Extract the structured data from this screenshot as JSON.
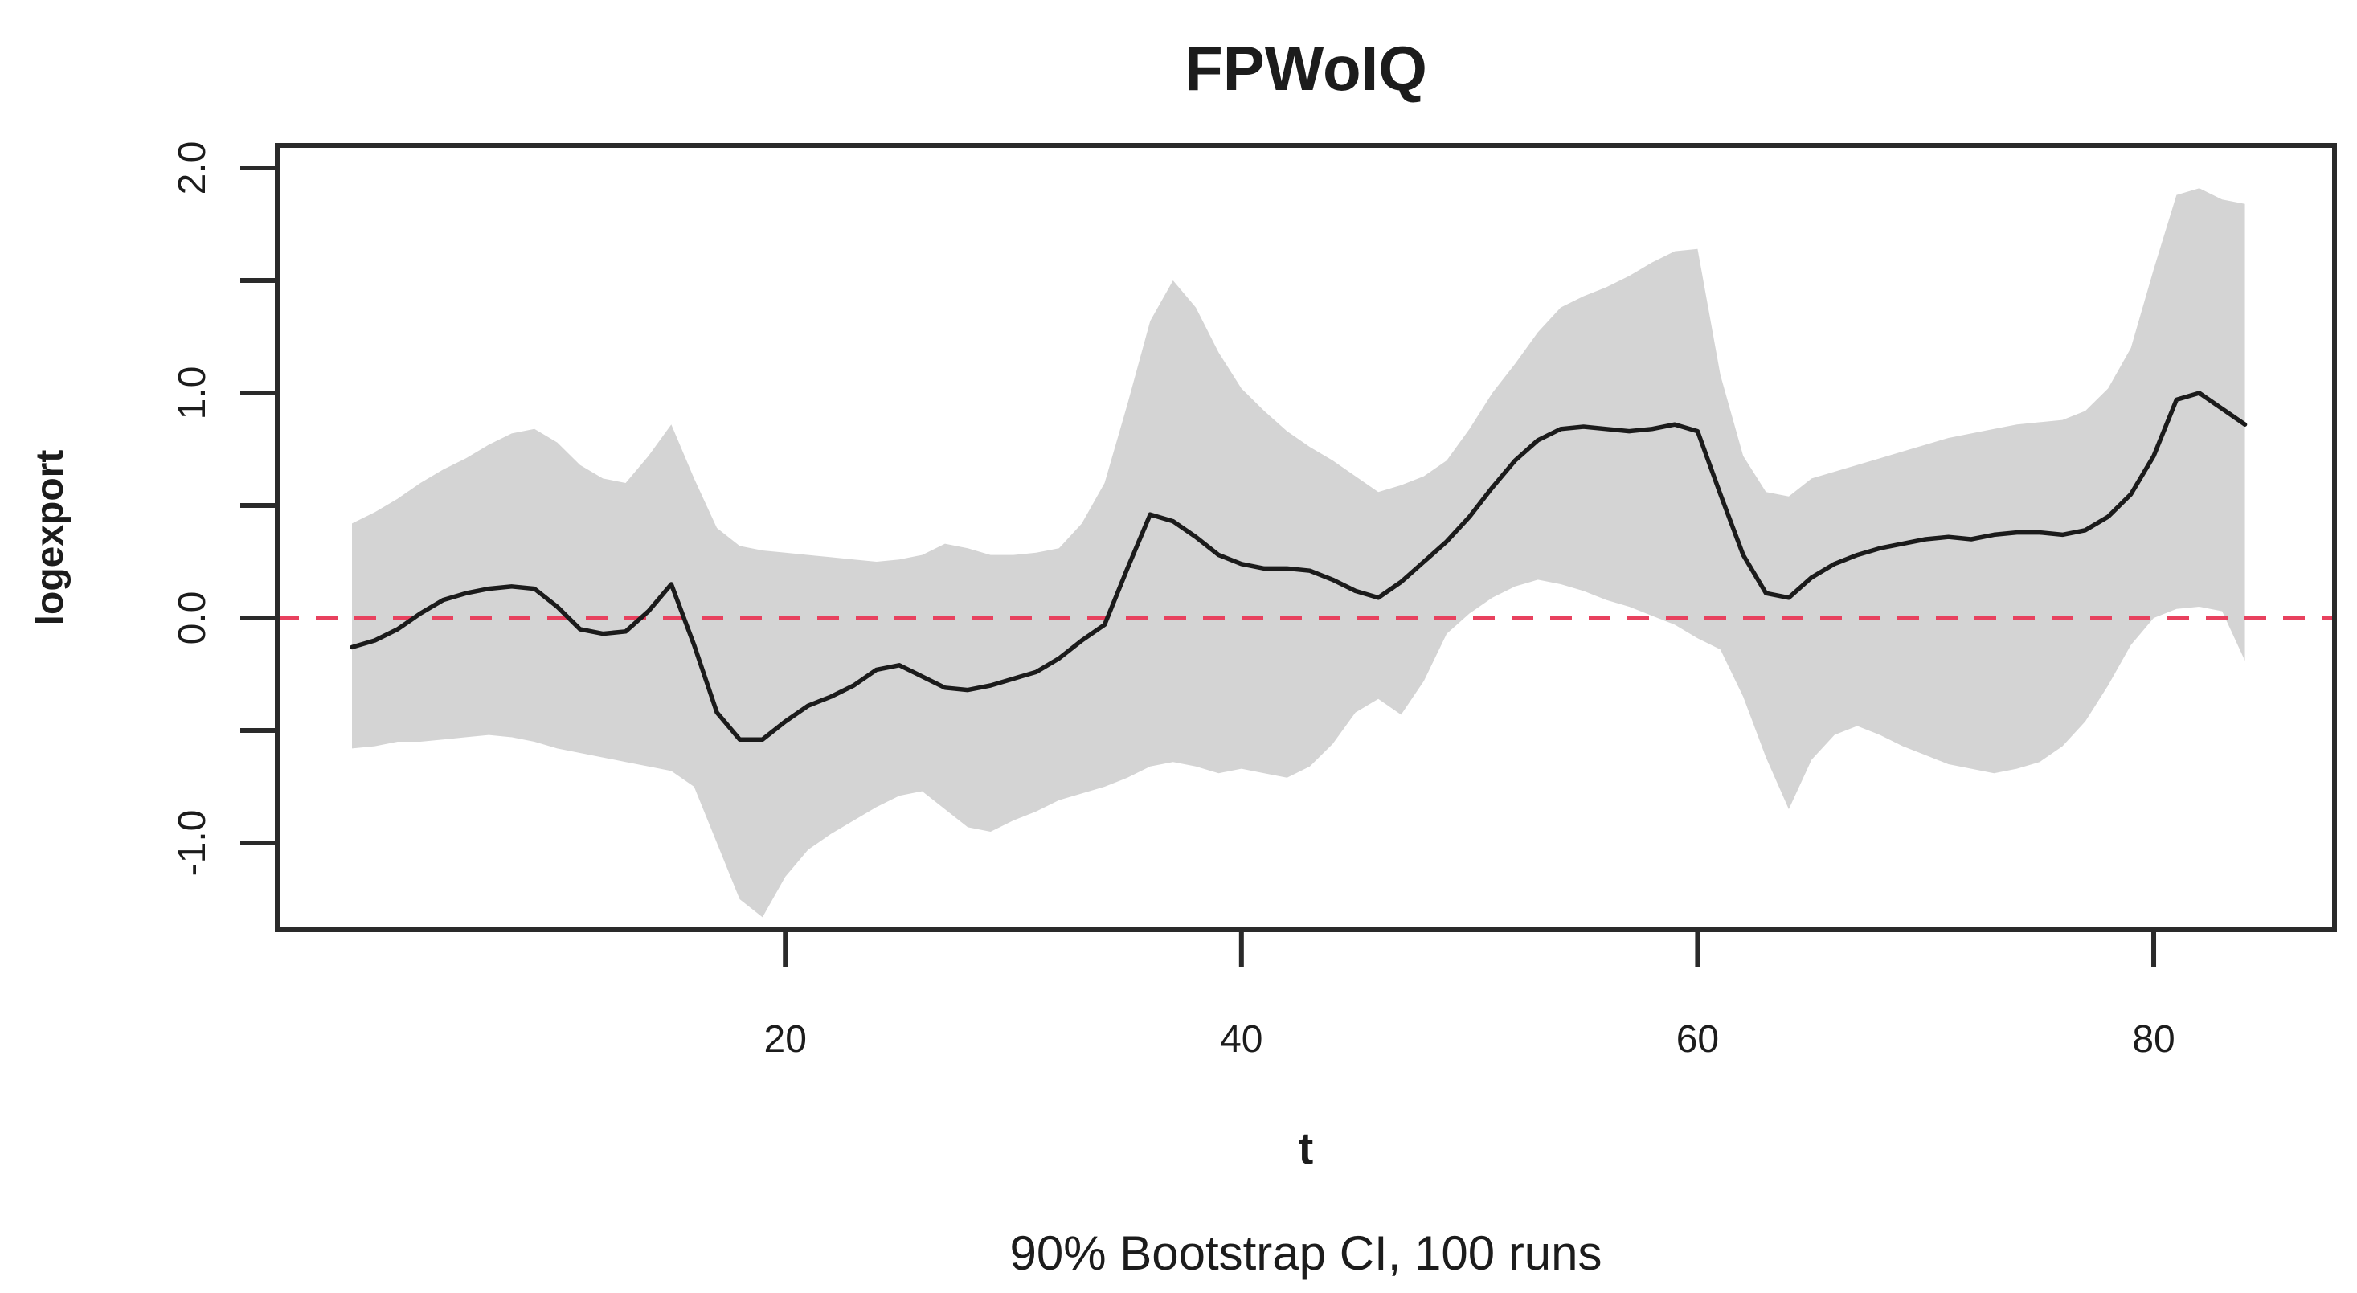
{
  "chart_data": {
    "type": "line",
    "title": "FPWoIQ",
    "subtitle": "90% Bootstrap CI, 100 runs",
    "xlabel": "t",
    "ylabel": "logexport",
    "x_tick_labels": [
      "20",
      "40",
      "60",
      "80"
    ],
    "x_ticks": [
      20,
      40,
      60,
      80
    ],
    "y_ticks": [
      {
        "value": 2.0,
        "label": "2.0"
      },
      {
        "value": 1.5,
        "label": ""
      },
      {
        "value": 1.0,
        "label": "1.0"
      },
      {
        "value": 0.5,
        "label": ""
      },
      {
        "value": 0.0,
        "label": "0.0"
      },
      {
        "value": -0.5,
        "label": ""
      },
      {
        "value": -1.0,
        "label": "-1.0"
      }
    ],
    "xlim": [
      -2.3,
      87.9
    ],
    "ylim": [
      -1.42,
      2.06
    ],
    "grid": "off",
    "legend": "none",
    "x": [
      1,
      2,
      3,
      4,
      5,
      6,
      7,
      8,
      9,
      10,
      11,
      12,
      13,
      14,
      15,
      16,
      17,
      18,
      19,
      20,
      21,
      22,
      23,
      24,
      25,
      26,
      27,
      28,
      29,
      30,
      31,
      32,
      33,
      34,
      35,
      36,
      37,
      38,
      39,
      40,
      41,
      42,
      43,
      44,
      45,
      46,
      47,
      48,
      49,
      50,
      51,
      52,
      53,
      54,
      55,
      56,
      57,
      58,
      59,
      60,
      61,
      62,
      63,
      64,
      65,
      66,
      67,
      68,
      69,
      70,
      71,
      72,
      73,
      74,
      75,
      76,
      77,
      78,
      79,
      80,
      81,
      82,
      83,
      84
    ],
    "series": [
      {
        "name": "mean",
        "role": "center-line",
        "color": "#1b1b1b",
        "values": [
          -0.13,
          -0.1,
          -0.05,
          0.02,
          0.08,
          0.11,
          0.13,
          0.14,
          0.13,
          0.05,
          -0.05,
          -0.07,
          -0.06,
          0.03,
          0.15,
          -0.12,
          -0.42,
          -0.54,
          -0.54,
          -0.46,
          -0.39,
          -0.35,
          -0.3,
          -0.23,
          -0.21,
          -0.26,
          -0.31,
          -0.32,
          -0.3,
          -0.27,
          -0.24,
          -0.18,
          -0.1,
          -0.03,
          0.22,
          0.46,
          0.43,
          0.36,
          0.28,
          0.24,
          0.22,
          0.22,
          0.21,
          0.17,
          0.12,
          0.09,
          0.16,
          0.25,
          0.34,
          0.45,
          0.58,
          0.7,
          0.79,
          0.84,
          0.85,
          0.84,
          0.83,
          0.84,
          0.86,
          0.83,
          0.55,
          0.28,
          0.11,
          0.09,
          0.18,
          0.24,
          0.28,
          0.31,
          0.33,
          0.35,
          0.36,
          0.35,
          0.37,
          0.38,
          0.38,
          0.37,
          0.39,
          0.45,
          0.55,
          0.72,
          0.97,
          1.0,
          0.93,
          0.86
        ]
      },
      {
        "name": "lower_90",
        "role": "band-lower",
        "color": "#d4d4d4",
        "values": [
          -0.58,
          -0.57,
          -0.55,
          -0.55,
          -0.54,
          -0.53,
          -0.52,
          -0.53,
          -0.55,
          -0.58,
          -0.6,
          -0.62,
          -0.64,
          -0.66,
          -0.68,
          -0.75,
          -1.0,
          -1.25,
          -1.33,
          -1.15,
          -1.03,
          -0.96,
          -0.9,
          -0.84,
          -0.79,
          -0.77,
          -0.85,
          -0.93,
          -0.95,
          -0.9,
          -0.86,
          -0.81,
          -0.78,
          -0.75,
          -0.71,
          -0.66,
          -0.64,
          -0.66,
          -0.69,
          -0.67,
          -0.69,
          -0.71,
          -0.66,
          -0.56,
          -0.42,
          -0.36,
          -0.43,
          -0.28,
          -0.07,
          0.02,
          0.09,
          0.14,
          0.17,
          0.15,
          0.12,
          0.08,
          0.05,
          0.01,
          -0.03,
          -0.09,
          -0.14,
          -0.35,
          -0.62,
          -0.85,
          -0.63,
          -0.52,
          -0.48,
          -0.52,
          -0.57,
          -0.61,
          -0.65,
          -0.67,
          -0.69,
          -0.67,
          -0.64,
          -0.57,
          -0.46,
          -0.3,
          -0.12,
          0.0,
          0.04,
          0.05,
          0.03,
          -0.19
        ]
      },
      {
        "name": "upper_90",
        "role": "band-upper",
        "color": "#d4d4d4",
        "values": [
          0.42,
          0.47,
          0.53,
          0.6,
          0.66,
          0.71,
          0.77,
          0.82,
          0.84,
          0.78,
          0.68,
          0.62,
          0.6,
          0.72,
          0.86,
          0.62,
          0.4,
          0.32,
          0.3,
          0.29,
          0.28,
          0.27,
          0.26,
          0.25,
          0.26,
          0.28,
          0.33,
          0.31,
          0.28,
          0.28,
          0.29,
          0.31,
          0.42,
          0.6,
          0.95,
          1.32,
          1.5,
          1.38,
          1.18,
          1.02,
          0.92,
          0.83,
          0.76,
          0.7,
          0.63,
          0.56,
          0.59,
          0.63,
          0.7,
          0.84,
          1.0,
          1.13,
          1.27,
          1.38,
          1.43,
          1.47,
          1.52,
          1.58,
          1.63,
          1.64,
          1.08,
          0.72,
          0.56,
          0.54,
          0.62,
          0.65,
          0.68,
          0.71,
          0.74,
          0.77,
          0.8,
          0.82,
          0.84,
          0.86,
          0.87,
          0.88,
          0.92,
          1.02,
          1.2,
          1.55,
          1.88,
          1.91,
          1.86,
          1.84
        ]
      }
    ],
    "band": {
      "from": "lower_90",
      "to": "upper_90",
      "color": "#d4d4d4"
    },
    "reference_line": {
      "y": 0,
      "style": "dashed",
      "color": "#e8415e"
    },
    "colors": {
      "axis": "#2a2a2a",
      "mean_line": "#1b1b1b",
      "band": "#d4d4d4",
      "zero_line": "#e8415e",
      "background": "#ffffff"
    }
  }
}
